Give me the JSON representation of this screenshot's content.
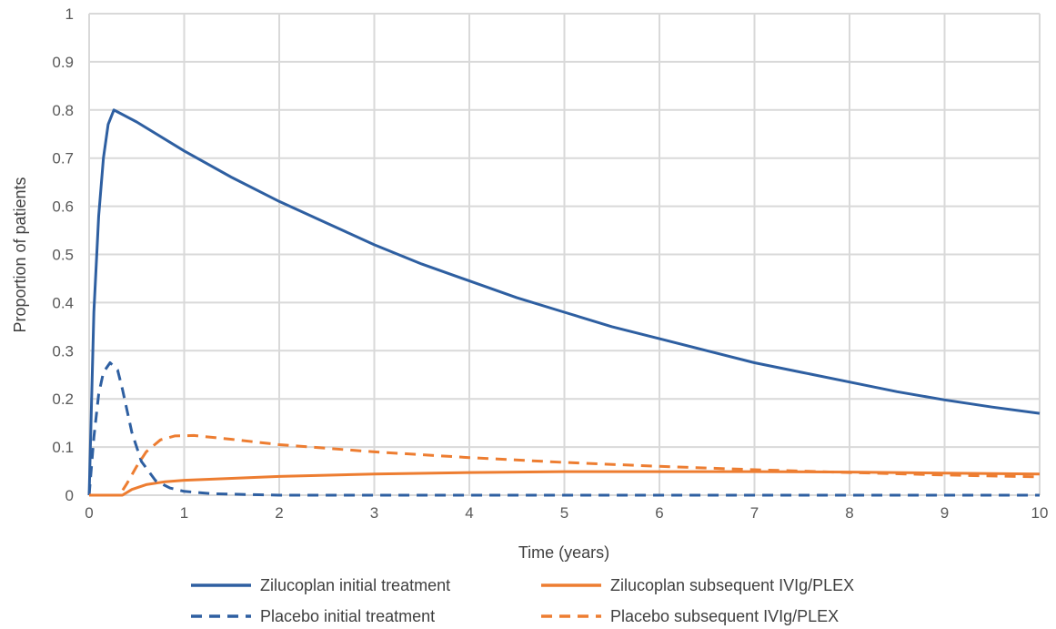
{
  "chart_data": {
    "type": "line",
    "title": "",
    "xlabel": "Time (years)",
    "ylabel": "Proportion of patients",
    "xlim": [
      0,
      10
    ],
    "ylim": [
      0,
      1
    ],
    "x_ticks": [
      "0",
      "1",
      "2",
      "3",
      "4",
      "5",
      "6",
      "7",
      "8",
      "9",
      "10"
    ],
    "y_ticks": [
      "0",
      "0.1",
      "0.2",
      "0.3",
      "0.4",
      "0.5",
      "0.6",
      "0.7",
      "0.8",
      "0.9",
      "1"
    ],
    "grid": true,
    "legend_position": "bottom",
    "series": [
      {
        "name": "Zilucoplan initial treatment",
        "color": "#2e5fa1",
        "dash": "solid",
        "points": [
          [
            0,
            0
          ],
          [
            0.05,
            0.38
          ],
          [
            0.1,
            0.58
          ],
          [
            0.15,
            0.7
          ],
          [
            0.2,
            0.77
          ],
          [
            0.26,
            0.8
          ],
          [
            0.5,
            0.775
          ],
          [
            1,
            0.715
          ],
          [
            1.5,
            0.66
          ],
          [
            2,
            0.61
          ],
          [
            2.5,
            0.565
          ],
          [
            3,
            0.52
          ],
          [
            3.5,
            0.48
          ],
          [
            4,
            0.445
          ],
          [
            4.5,
            0.41
          ],
          [
            5,
            0.38
          ],
          [
            5.5,
            0.35
          ],
          [
            6,
            0.325
          ],
          [
            6.5,
            0.3
          ],
          [
            7,
            0.275
          ],
          [
            7.5,
            0.255
          ],
          [
            8,
            0.235
          ],
          [
            8.5,
            0.215
          ],
          [
            9,
            0.198
          ],
          [
            9.5,
            0.183
          ],
          [
            10,
            0.17
          ]
        ]
      },
      {
        "name": "Zilucoplan subsequent IVIg/PLEX",
        "color": "#ed7d31",
        "dash": "solid",
        "points": [
          [
            0,
            0
          ],
          [
            0.35,
            0
          ],
          [
            0.45,
            0.012
          ],
          [
            0.6,
            0.022
          ],
          [
            0.8,
            0.028
          ],
          [
            1,
            0.031
          ],
          [
            1.5,
            0.035
          ],
          [
            2,
            0.039
          ],
          [
            3,
            0.044
          ],
          [
            4,
            0.047
          ],
          [
            5,
            0.049
          ],
          [
            6,
            0.049
          ],
          [
            7,
            0.049
          ],
          [
            8,
            0.048
          ],
          [
            9,
            0.046
          ],
          [
            10,
            0.044
          ]
        ]
      },
      {
        "name": "Placebo initial treatment",
        "color": "#2e5fa1",
        "dash": "dashed",
        "points": [
          [
            0,
            0
          ],
          [
            0.05,
            0.12
          ],
          [
            0.1,
            0.21
          ],
          [
            0.15,
            0.255
          ],
          [
            0.22,
            0.275
          ],
          [
            0.3,
            0.26
          ],
          [
            0.35,
            0.22
          ],
          [
            0.45,
            0.13
          ],
          [
            0.55,
            0.07
          ],
          [
            0.7,
            0.03
          ],
          [
            0.85,
            0.015
          ],
          [
            1,
            0.008
          ],
          [
            1.3,
            0.003
          ],
          [
            2,
            0
          ],
          [
            10,
            0
          ]
        ]
      },
      {
        "name": "Placebo subsequent IVIg/PLEX",
        "color": "#ed7d31",
        "dash": "dashed",
        "points": [
          [
            0,
            0
          ],
          [
            0.32,
            0
          ],
          [
            0.4,
            0.025
          ],
          [
            0.5,
            0.06
          ],
          [
            0.6,
            0.09
          ],
          [
            0.75,
            0.115
          ],
          [
            0.9,
            0.123
          ],
          [
            1.1,
            0.124
          ],
          [
            1.5,
            0.116
          ],
          [
            2,
            0.105
          ],
          [
            3,
            0.09
          ],
          [
            4,
            0.078
          ],
          [
            5,
            0.068
          ],
          [
            6,
            0.06
          ],
          [
            7,
            0.053
          ],
          [
            8,
            0.047
          ],
          [
            9,
            0.042
          ],
          [
            10,
            0.038
          ]
        ]
      }
    ]
  }
}
